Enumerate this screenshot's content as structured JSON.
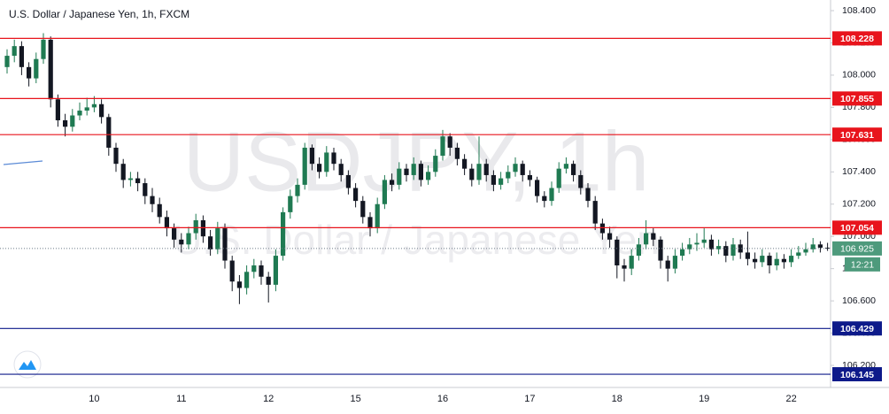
{
  "chart_data": {
    "type": "candlestick",
    "title": "U.S. Dollar / Japanese Yen, 1h, FXCM",
    "watermark": "USDJPY, 1h",
    "watermark_subtitle": "U.S. Dollar / Japanese Yen",
    "categories": [
      null,
      null,
      null,
      null,
      null,
      null,
      null,
      null,
      null,
      null,
      null,
      null,
      "10",
      null,
      null,
      null,
      null,
      null,
      null,
      null,
      null,
      null,
      null,
      null,
      "11",
      null,
      null,
      null,
      null,
      null,
      null,
      null,
      null,
      null,
      null,
      null,
      "12",
      null,
      null,
      null,
      null,
      null,
      null,
      null,
      null,
      null,
      null,
      null,
      "15",
      null,
      null,
      null,
      null,
      null,
      null,
      null,
      null,
      null,
      null,
      null,
      "16",
      null,
      null,
      null,
      null,
      null,
      null,
      null,
      null,
      null,
      null,
      null,
      "17",
      null,
      null,
      null,
      null,
      null,
      null,
      null,
      null,
      null,
      null,
      null,
      "18",
      null,
      null,
      null,
      null,
      null,
      null,
      null,
      null,
      null,
      null,
      null,
      "19",
      null,
      null,
      null,
      null,
      null,
      null,
      null,
      null,
      null,
      null,
      null,
      "22",
      null,
      null,
      null,
      null,
      null
    ],
    "open": [
      108.05,
      108.12,
      108.18,
      108.05,
      107.98,
      108.1,
      108.22,
      107.85,
      107.72,
      107.68,
      107.75,
      107.78,
      107.8,
      107.82,
      107.74,
      107.55,
      107.45,
      107.35,
      107.36,
      107.33,
      107.25,
      107.2,
      107.12,
      107.05,
      106.98,
      106.95,
      107.02,
      107.1,
      107.0,
      106.92,
      107.05,
      106.85,
      106.72,
      106.68,
      106.78,
      106.82,
      106.75,
      106.7,
      106.88,
      107.15,
      107.25,
      107.32,
      107.55,
      107.45,
      107.4,
      107.52,
      107.45,
      107.38,
      107.3,
      107.22,
      107.12,
      107.05,
      107.2,
      107.35,
      107.32,
      107.42,
      107.38,
      107.45,
      107.35,
      107.4,
      107.5,
      107.62,
      107.55,
      107.48,
      107.42,
      107.35,
      107.45,
      107.38,
      107.32,
      107.36,
      107.4,
      107.45,
      107.38,
      107.35,
      107.25,
      107.22,
      107.3,
      107.42,
      107.45,
      107.38,
      107.3,
      107.22,
      107.08,
      107.02,
      106.98,
      106.82,
      106.8,
      106.88,
      106.95,
      107.02,
      106.98,
      106.85,
      106.8,
      106.88,
      106.92,
      106.95,
      106.96,
      106.98,
      106.92,
      106.94,
      106.88,
      106.95,
      106.9,
      106.86,
      106.84,
      106.88,
      106.82,
      106.86,
      106.84,
      106.88,
      106.9,
      106.92,
      106.95,
      106.93
    ],
    "high": [
      108.16,
      108.22,
      108.21,
      108.08,
      108.14,
      108.26,
      108.24,
      107.88,
      107.76,
      107.79,
      107.83,
      107.86,
      107.87,
      107.85,
      107.76,
      107.58,
      107.48,
      107.4,
      107.4,
      107.36,
      107.3,
      107.24,
      107.16,
      107.08,
      107.02,
      107.06,
      107.14,
      107.13,
      107.04,
      107.09,
      107.08,
      106.88,
      106.76,
      106.82,
      106.86,
      106.85,
      106.78,
      106.92,
      107.18,
      107.29,
      107.36,
      107.58,
      107.57,
      107.49,
      107.56,
      107.55,
      107.48,
      107.41,
      107.33,
      107.25,
      107.15,
      107.24,
      107.38,
      107.39,
      107.46,
      107.45,
      107.49,
      107.47,
      107.44,
      107.54,
      107.66,
      107.64,
      107.58,
      107.51,
      107.45,
      107.62,
      107.48,
      107.41,
      107.4,
      107.44,
      107.49,
      107.47,
      107.41,
      107.37,
      107.28,
      107.34,
      107.46,
      107.49,
      107.47,
      107.41,
      107.33,
      107.25,
      107.11,
      107.06,
      107.0,
      106.86,
      106.92,
      106.99,
      107.1,
      107.05,
      107.0,
      106.88,
      106.92,
      106.96,
      106.99,
      107.02,
      107.05,
      107.01,
      106.98,
      106.97,
      106.99,
      106.98,
      107.03,
      106.9,
      106.92,
      106.9,
      106.9,
      106.89,
      106.92,
      106.94,
      106.96,
      106.99,
      106.97,
      106.96
    ],
    "low": [
      108.01,
      108.08,
      108.0,
      107.93,
      107.95,
      108.07,
      107.8,
      107.68,
      107.62,
      107.65,
      107.72,
      107.75,
      107.77,
      107.7,
      107.5,
      107.4,
      107.3,
      107.31,
      107.28,
      107.2,
      107.15,
      107.08,
      107.0,
      106.93,
      106.9,
      106.92,
      106.98,
      106.96,
      106.88,
      106.89,
      106.8,
      106.66,
      106.58,
      106.64,
      106.74,
      106.7,
      106.59,
      106.66,
      106.85,
      107.11,
      107.21,
      107.29,
      107.41,
      107.36,
      107.37,
      107.41,
      107.34,
      107.26,
      107.18,
      107.08,
      107.0,
      107.02,
      107.17,
      107.28,
      107.29,
      107.34,
      107.35,
      107.31,
      107.32,
      107.37,
      107.47,
      107.5,
      107.44,
      107.38,
      107.31,
      107.32,
      107.34,
      107.28,
      107.29,
      107.33,
      107.37,
      107.34,
      107.31,
      107.21,
      107.18,
      107.19,
      107.27,
      107.39,
      107.34,
      107.26,
      107.18,
      107.04,
      106.98,
      106.93,
      106.74,
      106.72,
      106.76,
      106.85,
      106.92,
      106.94,
      106.8,
      106.72,
      106.77,
      106.85,
      106.89,
      106.91,
      106.93,
      106.88,
      106.89,
      106.84,
      106.85,
      106.86,
      106.82,
      106.8,
      106.81,
      106.77,
      106.79,
      106.8,
      106.81,
      106.86,
      106.88,
      106.9,
      106.9,
      106.91
    ],
    "close": [
      108.12,
      108.18,
      108.05,
      107.98,
      108.1,
      108.22,
      107.85,
      107.72,
      107.68,
      107.75,
      107.78,
      107.8,
      107.82,
      107.74,
      107.55,
      107.45,
      107.35,
      107.36,
      107.33,
      107.25,
      107.2,
      107.12,
      107.05,
      106.98,
      106.95,
      107.02,
      107.1,
      107.0,
      106.92,
      107.05,
      106.85,
      106.72,
      106.68,
      106.78,
      106.82,
      106.75,
      106.7,
      106.88,
      107.15,
      107.25,
      107.32,
      107.55,
      107.45,
      107.4,
      107.52,
      107.45,
      107.38,
      107.3,
      107.22,
      107.12,
      107.05,
      107.2,
      107.35,
      107.32,
      107.42,
      107.38,
      107.45,
      107.35,
      107.4,
      107.5,
      107.62,
      107.55,
      107.48,
      107.42,
      107.35,
      107.45,
      107.38,
      107.32,
      107.36,
      107.4,
      107.45,
      107.38,
      107.35,
      107.25,
      107.22,
      107.3,
      107.42,
      107.45,
      107.38,
      107.3,
      107.22,
      107.08,
      107.02,
      106.98,
      106.82,
      106.8,
      106.88,
      106.95,
      107.02,
      106.98,
      106.85,
      106.8,
      106.88,
      106.92,
      106.95,
      106.96,
      106.98,
      106.92,
      106.94,
      106.88,
      106.95,
      106.9,
      106.86,
      106.84,
      106.88,
      106.82,
      106.86,
      106.84,
      106.88,
      106.9,
      106.92,
      106.95,
      106.93,
      106.925
    ],
    "up_color": "#1f7a52",
    "down_color": "#131722",
    "ylim": [
      106.063,
      108.466
    ],
    "yticks": [
      {
        "value": 106.2,
        "label": "106.200"
      },
      {
        "value": 106.4,
        "label": "106.400"
      },
      {
        "value": 106.6,
        "label": "106.600"
      },
      {
        "value": 106.8,
        "label": "106.800"
      },
      {
        "value": 107,
        "label": "107.000"
      },
      {
        "value": 107.2,
        "label": "107.200"
      },
      {
        "value": 107.4,
        "label": "107.400"
      },
      {
        "value": 107.6,
        "label": "107.600"
      },
      {
        "value": 107.8,
        "label": "107.800"
      },
      {
        "value": 108,
        "label": "108.000"
      },
      {
        "value": 108.2,
        "label": "108.200"
      },
      {
        "value": 108.4,
        "label": "108.400"
      }
    ],
    "levels": [
      {
        "value": 108.228,
        "color": "#e8141c"
      },
      {
        "value": 107.855,
        "color": "#e8141c"
      },
      {
        "value": 107.631,
        "color": "#e8141c"
      },
      {
        "value": 107.054,
        "color": "#e8141c"
      },
      {
        "value": 106.429,
        "color": "#0d1a8a"
      },
      {
        "value": 106.145,
        "color": "#0d1a8a"
      }
    ],
    "last_price": 106.925,
    "last_price_color": "#4e9a7c",
    "countdown": "12:21"
  }
}
